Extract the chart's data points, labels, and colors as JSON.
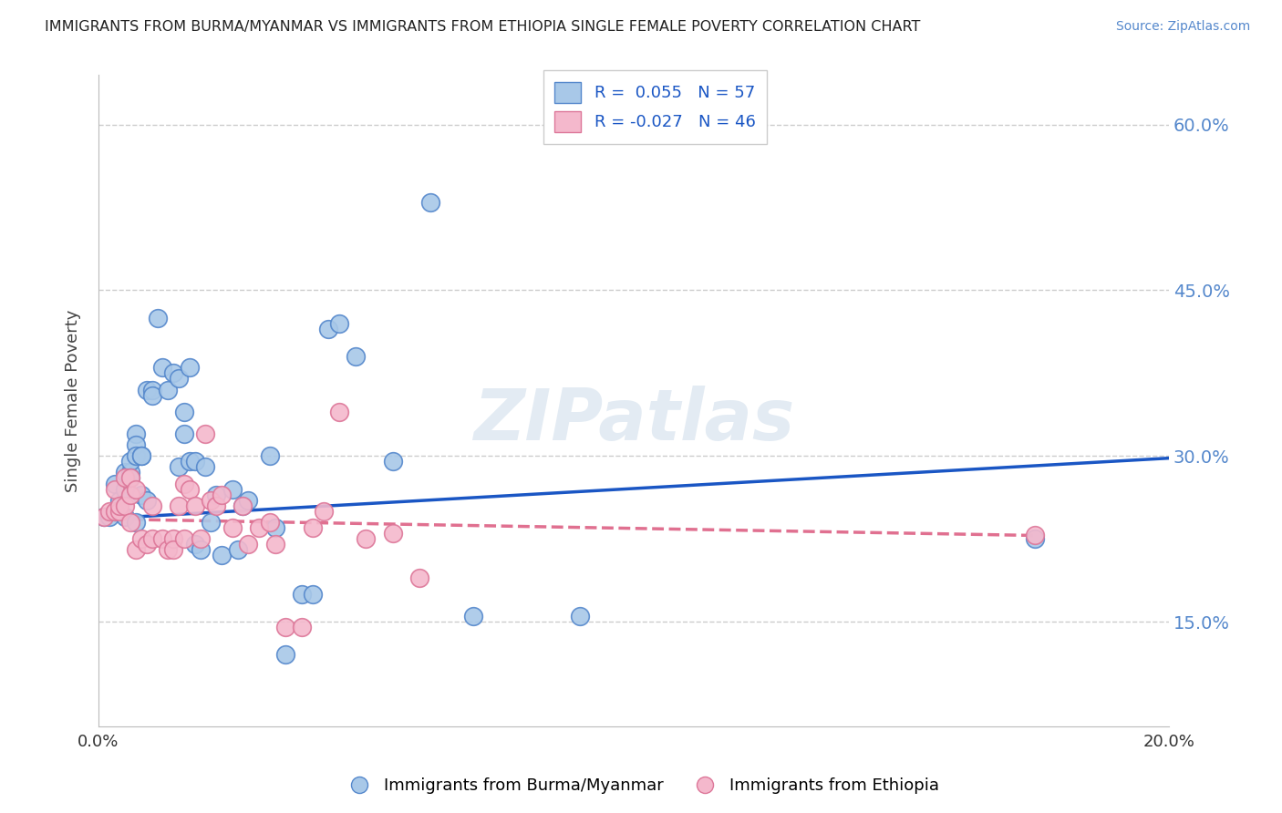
{
  "title": "IMMIGRANTS FROM BURMA/MYANMAR VS IMMIGRANTS FROM ETHIOPIA SINGLE FEMALE POVERTY CORRELATION CHART",
  "source": "Source: ZipAtlas.com",
  "ylabel": "Single Female Poverty",
  "xlim": [
    0.0,
    0.2
  ],
  "ylim": [
    0.055,
    0.645
  ],
  "ytick_vals": [
    0.15,
    0.3,
    0.45,
    0.6
  ],
  "ytick_labels": [
    "15.0%",
    "30.0%",
    "45.0%",
    "60.0%"
  ],
  "xtick_vals": [
    0.0,
    0.04,
    0.08,
    0.12,
    0.16,
    0.2
  ],
  "xtick_labels": [
    "0.0%",
    "",
    "",
    "",
    "",
    "20.0%"
  ],
  "watermark": "ZIPatlas",
  "blue_color": "#a8c8e8",
  "pink_color": "#f4b8cc",
  "blue_edge_color": "#5588cc",
  "pink_edge_color": "#dd7799",
  "blue_line_color": "#1a56c4",
  "pink_line_color": "#e07090",
  "right_axis_color": "#5588cc",
  "scatter_blue_x": [
    0.001,
    0.002,
    0.003,
    0.003,
    0.004,
    0.004,
    0.005,
    0.005,
    0.005,
    0.006,
    0.006,
    0.006,
    0.007,
    0.007,
    0.007,
    0.007,
    0.008,
    0.008,
    0.008,
    0.009,
    0.009,
    0.01,
    0.01,
    0.011,
    0.012,
    0.013,
    0.014,
    0.015,
    0.015,
    0.016,
    0.016,
    0.017,
    0.017,
    0.018,
    0.018,
    0.019,
    0.02,
    0.021,
    0.022,
    0.023,
    0.025,
    0.026,
    0.027,
    0.028,
    0.032,
    0.033,
    0.035,
    0.038,
    0.04,
    0.043,
    0.045,
    0.048,
    0.055,
    0.062,
    0.07,
    0.09,
    0.175
  ],
  "scatter_blue_y": [
    0.245,
    0.245,
    0.25,
    0.275,
    0.25,
    0.26,
    0.27,
    0.285,
    0.245,
    0.285,
    0.295,
    0.28,
    0.32,
    0.31,
    0.3,
    0.24,
    0.3,
    0.3,
    0.265,
    0.36,
    0.26,
    0.36,
    0.355,
    0.425,
    0.38,
    0.36,
    0.375,
    0.29,
    0.37,
    0.32,
    0.34,
    0.38,
    0.295,
    0.295,
    0.22,
    0.215,
    0.29,
    0.24,
    0.265,
    0.21,
    0.27,
    0.215,
    0.255,
    0.26,
    0.3,
    0.235,
    0.12,
    0.175,
    0.175,
    0.415,
    0.42,
    0.39,
    0.295,
    0.53,
    0.155,
    0.155,
    0.225
  ],
  "scatter_pink_x": [
    0.001,
    0.002,
    0.003,
    0.003,
    0.004,
    0.004,
    0.005,
    0.005,
    0.006,
    0.006,
    0.006,
    0.007,
    0.007,
    0.008,
    0.009,
    0.01,
    0.01,
    0.012,
    0.013,
    0.014,
    0.014,
    0.015,
    0.016,
    0.016,
    0.017,
    0.018,
    0.019,
    0.02,
    0.021,
    0.022,
    0.023,
    0.025,
    0.027,
    0.028,
    0.03,
    0.032,
    0.033,
    0.035,
    0.038,
    0.04,
    0.042,
    0.045,
    0.05,
    0.055,
    0.06,
    0.175
  ],
  "scatter_pink_y": [
    0.245,
    0.25,
    0.25,
    0.27,
    0.25,
    0.255,
    0.255,
    0.28,
    0.265,
    0.24,
    0.28,
    0.27,
    0.215,
    0.225,
    0.22,
    0.255,
    0.225,
    0.225,
    0.215,
    0.225,
    0.215,
    0.255,
    0.275,
    0.225,
    0.27,
    0.255,
    0.225,
    0.32,
    0.26,
    0.255,
    0.265,
    0.235,
    0.255,
    0.22,
    0.235,
    0.24,
    0.22,
    0.145,
    0.145,
    0.235,
    0.25,
    0.34,
    0.225,
    0.23,
    0.19,
    0.228
  ],
  "trendline_blue": [
    0.0,
    0.2,
    0.243,
    0.298
  ],
  "trendline_pink": [
    0.0,
    0.175,
    0.243,
    0.228
  ],
  "background_color": "#ffffff",
  "grid_color": "#cccccc"
}
